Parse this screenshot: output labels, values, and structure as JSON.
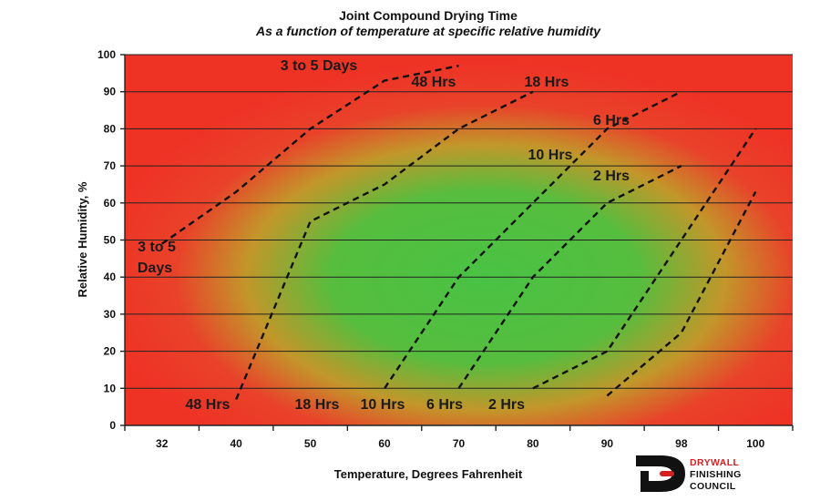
{
  "chart_data": {
    "type": "line",
    "title": "Joint Compound Drying Time",
    "subtitle": "As a function of temperature at specific relative humidity",
    "xlabel": "Temperature, Degrees Fahrenheit",
    "ylabel": "Relative Humidity, %",
    "x_categories": [
      "32",
      "40",
      "50",
      "60",
      "70",
      "80",
      "90",
      "98",
      "100"
    ],
    "ylim": [
      0,
      100
    ],
    "y_ticks": [
      0,
      10,
      20,
      30,
      40,
      50,
      60,
      70,
      80,
      90,
      100
    ],
    "grid": "horizontal",
    "background": "radial gradient, green center fading to red edges",
    "colors": {
      "center": "#49c244",
      "edge": "#ee3325",
      "lines": "#111111"
    },
    "series": [
      {
        "name": "3 to 5 Days",
        "points": [
          [
            32,
            49
          ],
          [
            40,
            63
          ],
          [
            50,
            80
          ],
          [
            60,
            93
          ],
          [
            70,
            97
          ]
        ],
        "labels": [
          "3 to 5",
          "Days",
          "3 to 5 Days"
        ]
      },
      {
        "name": "48 Hrs",
        "points": [
          [
            40,
            7
          ],
          [
            50,
            55
          ],
          [
            60,
            65
          ],
          [
            70,
            80
          ],
          [
            80,
            90
          ]
        ],
        "labels": [
          "48 Hrs",
          "48 Hrs"
        ]
      },
      {
        "name": "18 Hrs",
        "points": [
          [
            60,
            10
          ],
          [
            70,
            40
          ],
          [
            80,
            60
          ],
          [
            90,
            80
          ],
          [
            98,
            90
          ]
        ],
        "labels": [
          "18 Hrs",
          "18 Hrs"
        ]
      },
      {
        "name": "10 Hrs",
        "points": [
          [
            70,
            10
          ],
          [
            80,
            40
          ],
          [
            90,
            60
          ],
          [
            98,
            70
          ]
        ],
        "labels": [
          "10 Hrs",
          "10 Hrs"
        ]
      },
      {
        "name": "6 Hrs",
        "points": [
          [
            80,
            10
          ],
          [
            90,
            20
          ],
          [
            98,
            50
          ],
          [
            100,
            80
          ]
        ],
        "labels": [
          "6 Hrs",
          "6 Hrs"
        ]
      },
      {
        "name": "2 Hrs",
        "points": [
          [
            90,
            8
          ],
          [
            98,
            25
          ],
          [
            100,
            63
          ]
        ],
        "labels": [
          "2 Hrs",
          "2 Hrs"
        ]
      }
    ]
  },
  "logo": {
    "line1": "DRYWALL",
    "line2": "FINISHING",
    "line3": "COUNCIL",
    "color_accent": "#d32020"
  }
}
